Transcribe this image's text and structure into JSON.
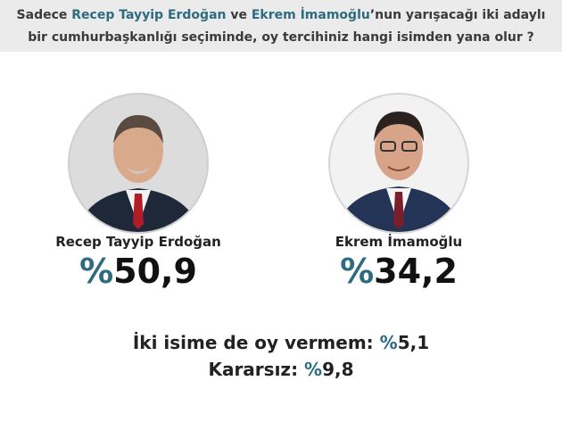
{
  "question": {
    "line1": [
      "Sadece",
      "Recep Tayyip Erdoğan",
      "ve",
      "Ekrem İmamoğlu",
      "’nun yarışacağı iki adaylı"
    ],
    "line2": "bir cumhurbaşkanlığı seçiminde, oy tercihiniz hangi isimden yana olur ?"
  },
  "candidates": [
    {
      "name": "Recep Tayyip Erdoğan",
      "sign": "%",
      "value": "50,9"
    },
    {
      "name": "Ekrem İmamoğlu",
      "sign": "%",
      "value": "34,2"
    }
  ],
  "others": [
    {
      "label": "İki isime de oy vermem:",
      "sign": "%",
      "value": "5,1"
    },
    {
      "label": "Kararsız:",
      "sign": "%",
      "value": "9,8"
    }
  ]
}
